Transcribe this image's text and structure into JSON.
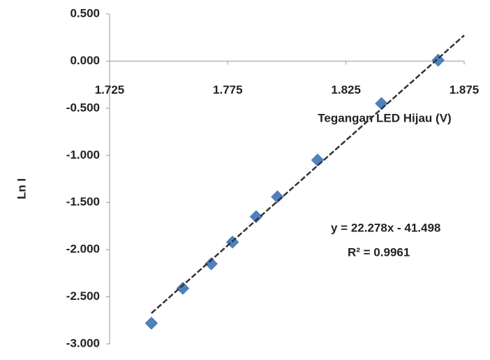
{
  "chart_data": {
    "type": "scatter",
    "x_label": "Tegangan LED Hijau (V)",
    "y_label": "Ln I",
    "x": [
      1.7427,
      1.756,
      1.768,
      1.777,
      1.787,
      1.796,
      1.813,
      1.84,
      1.864
    ],
    "series": [
      {
        "color": "#4f81bd",
        "values": [
          -2.78,
          -2.41,
          -2.15,
          -1.92,
          -1.65,
          -1.44,
          -1.05,
          -0.45,
          0.01
        ]
      }
    ],
    "trendline": {
      "slope": 22.278,
      "intercept": -41.498,
      "color": "#333333",
      "equation": "y = 22.278x - 41.498",
      "r_squared": "R² = 0.9961"
    },
    "xlim": [
      1.725,
      1.875
    ],
    "xticks": [
      {
        "value": 1.725,
        "label": "1.725"
      },
      {
        "value": 1.775,
        "label": "1.775"
      },
      {
        "value": 1.825,
        "label": "1.825"
      },
      {
        "value": 1.875,
        "label": "1.875"
      }
    ],
    "ylim": [
      -3.0,
      0.5
    ],
    "yticks": [
      {
        "value": 0.5,
        "label": "0.500"
      },
      {
        "value": 0,
        "label": "0.000"
      },
      {
        "value": -0.5,
        "label": "-0.500"
      },
      {
        "value": -1,
        "label": "-1.000"
      },
      {
        "value": -1.5,
        "label": "-1.500"
      },
      {
        "value": -2,
        "label": "-2.000"
      },
      {
        "value": -2.5,
        "label": "-2.500"
      },
      {
        "value": -3,
        "label": "-3.000"
      }
    ],
    "grid": false
  }
}
